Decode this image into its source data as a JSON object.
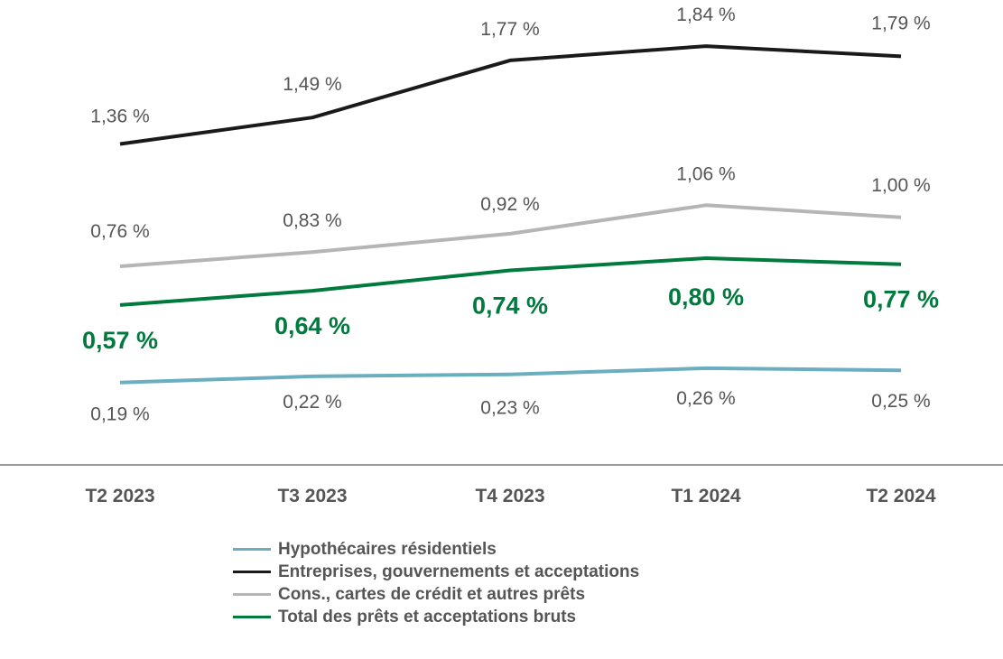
{
  "chart_data": {
    "type": "line",
    "categories": [
      "T2 2023",
      "T3 2023",
      "T4 2023",
      "T1 2024",
      "T2 2024"
    ],
    "ylim": [
      0,
      2
    ],
    "grid": false,
    "legend_position": "bottom",
    "series": [
      {
        "name": "Hypothécaires résidentiels",
        "color": "#6aaec0",
        "values": [
          0.19,
          0.22,
          0.23,
          0.26,
          0.25
        ],
        "labels": [
          "0,19 %",
          "0,22 %",
          "0,23 %",
          "0,26 %",
          "0,25 %"
        ]
      },
      {
        "name": "Entreprises, gouvernements et acceptations",
        "color": "#1a1a1a",
        "values": [
          1.36,
          1.49,
          1.77,
          1.84,
          1.79
        ],
        "labels": [
          "1,36 %",
          "1,49 %",
          "1,77 %",
          "1,84 %",
          "1,79 %"
        ]
      },
      {
        "name": "Cons., cartes de crédit et autres prêts",
        "color": "#b5b5b5",
        "values": [
          0.76,
          0.83,
          0.92,
          1.06,
          1.0
        ],
        "labels": [
          "0,76 %",
          "0,83 %",
          "0,92 %",
          "1,06 %",
          "1,00 %"
        ]
      },
      {
        "name": "Total des prêts et acceptations bruts",
        "color": "#007a3d",
        "values": [
          0.57,
          0.64,
          0.74,
          0.8,
          0.77
        ],
        "labels": [
          "0,57 %",
          "0,64 %",
          "0,74 %",
          "0,80 %",
          "0,77 %"
        ]
      }
    ]
  }
}
